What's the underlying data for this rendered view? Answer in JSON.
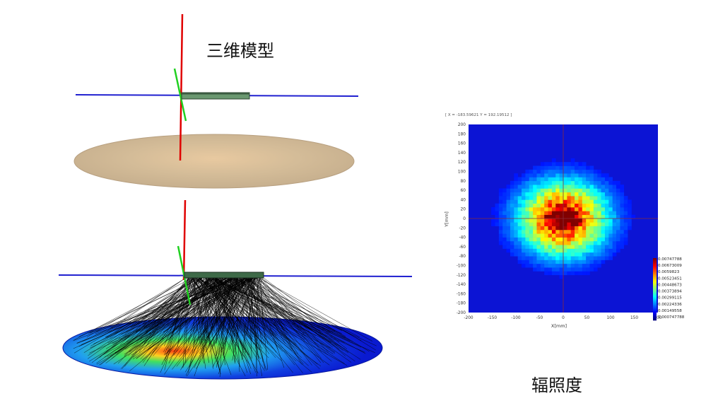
{
  "slide": {
    "model_title": "三维模型",
    "irradiance_title": "辐照度"
  },
  "plot": {
    "cursor_readout": "[ X = -183.59621  Y = 192.19512 ]",
    "xlabel": "X[mm]",
    "ylabel": "Y[mm]",
    "xticks": [
      "-200",
      "-150",
      "-100",
      "-50",
      "0",
      "50",
      "100",
      "150",
      "200"
    ],
    "yticks": [
      "200",
      "180",
      "160",
      "140",
      "120",
      "100",
      "80",
      "60",
      "40",
      "20",
      "0",
      "-20",
      "-40",
      "-60",
      "-80",
      "-100",
      "-120",
      "-140",
      "-160",
      "-180",
      "-200"
    ],
    "colorbar_labels": [
      "0.00747788",
      "0.00673009",
      "0.0059823",
      "0.00523451",
      "0.00448673",
      "0.00373894",
      "0.00299115",
      "0.00224336",
      "0.00149558",
      "0.000747788"
    ],
    "colors": {
      "background": "#0c14d4",
      "axis_line": "#8a2a3a"
    }
  },
  "chart_data": {
    "type": "heatmap",
    "title": "",
    "xlabel": "X[mm]",
    "ylabel": "Y[mm]",
    "xlim": [
      -200,
      200
    ],
    "ylim": [
      -200,
      200
    ],
    "x_step": 8,
    "y_step": 8,
    "peak_value": 0.00747788,
    "peak_center": [
      0,
      0
    ],
    "colorbar_range": [
      0,
      0.00747788
    ],
    "grid": false,
    "legend_position": "bottom-right"
  }
}
